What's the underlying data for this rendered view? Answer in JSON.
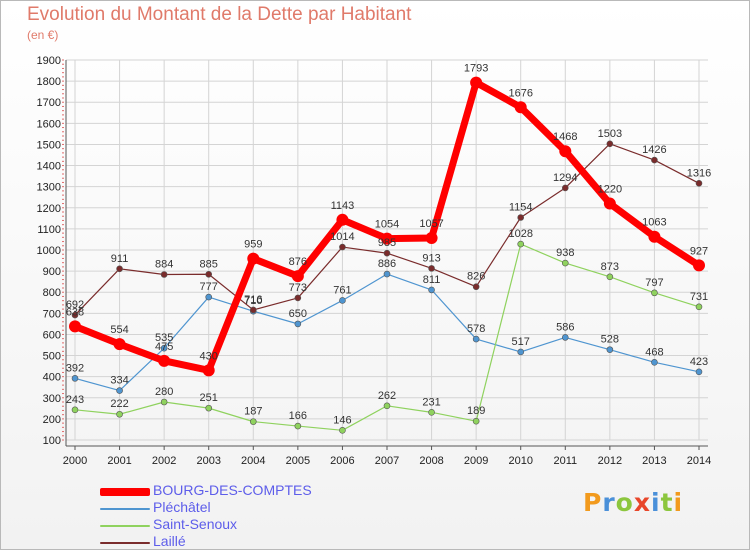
{
  "header": {
    "title": "Evolution du Montant de la Dette par Habitant",
    "unit": "(en €)"
  },
  "logo": {
    "text": "Proxiti",
    "letter_colors": [
      "#f29a1d",
      "#4a90d9",
      "#8cc63e",
      "#e8462a",
      "#4a90d9",
      "#8cc63e",
      "#f29a1d"
    ]
  },
  "chart_data": {
    "type": "line",
    "title": "Evolution du Montant de la Dette par Habitant",
    "ylabel": "(en €)",
    "xlabel": "",
    "x": [
      "2000",
      "2001",
      "2002",
      "2003",
      "2004",
      "2005",
      "2006",
      "2007",
      "2008",
      "2009",
      "2010",
      "2011",
      "2012",
      "2013",
      "2014"
    ],
    "ylim": [
      100,
      1900
    ],
    "yticks": [
      100,
      200,
      300,
      400,
      500,
      600,
      700,
      800,
      900,
      1000,
      1100,
      1200,
      1300,
      1400,
      1500,
      1600,
      1700,
      1800,
      1900
    ],
    "grid": true,
    "legend": "bottom-left",
    "series": [
      {
        "name": "BOURG-DES-COMPTES",
        "color": "#ff0000",
        "width": 7,
        "marker": 6,
        "values": [
          638,
          554,
          475,
          430,
          959,
          876,
          1143,
          1054,
          1057,
          1793,
          1676,
          1468,
          1220,
          1063,
          927
        ]
      },
      {
        "name": "Pléchâtel",
        "color": "#4f95d0",
        "width": 1.2,
        "marker": 3,
        "values": [
          392,
          334,
          535,
          777,
          710,
          650,
          761,
          886,
          811,
          578,
          517,
          586,
          528,
          468,
          423
        ]
      },
      {
        "name": "Saint-Senoux",
        "color": "#8fd25e",
        "width": 1.2,
        "marker": 3,
        "values": [
          243,
          222,
          280,
          251,
          187,
          166,
          146,
          262,
          231,
          189,
          1028,
          938,
          873,
          797,
          731
        ]
      },
      {
        "name": "Laillé",
        "color": "#7a2c2c",
        "width": 1.2,
        "marker": 3,
        "values": [
          692,
          911,
          884,
          885,
          716,
          773,
          1014,
          985,
          913,
          826,
          1154,
          1294,
          1503,
          1426,
          1316
        ]
      }
    ]
  }
}
